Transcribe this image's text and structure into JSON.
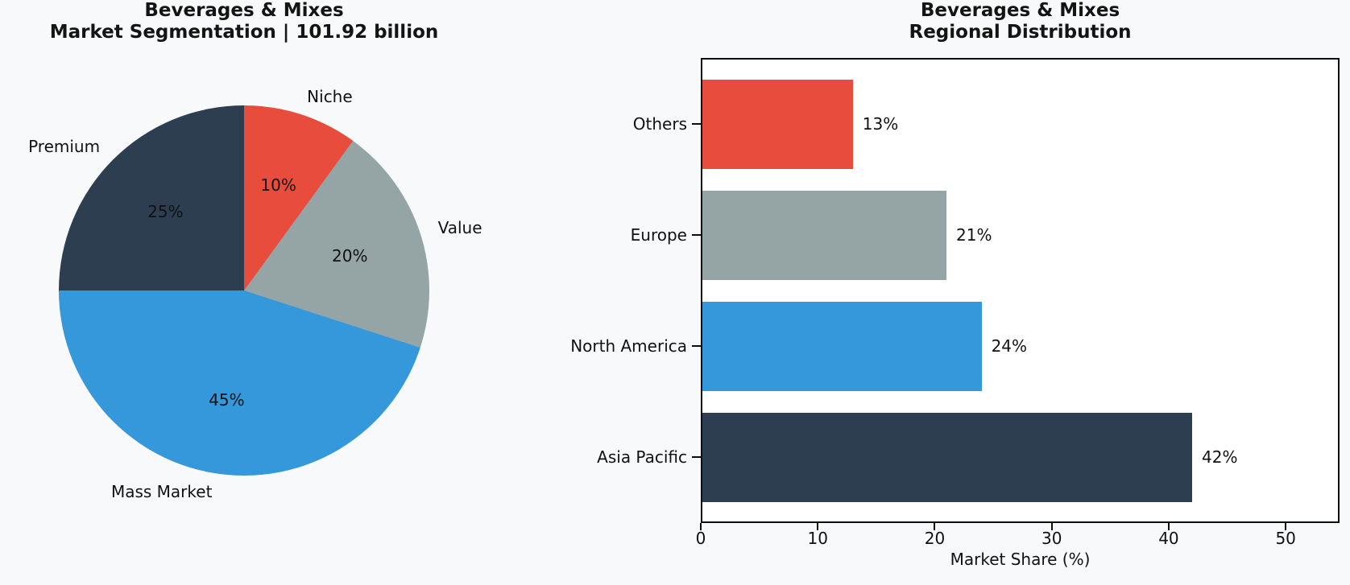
{
  "figure": {
    "background": "#f8f9fa",
    "plot_background": "#ffffff",
    "palette": {
      "red": "#e74c3c",
      "gray": "#95a5a6",
      "blue": "#3498db",
      "navy": "#2c3e50"
    }
  },
  "chart_data": [
    {
      "type": "pie",
      "title_lines": [
        "Beverages & Mixes",
        "Market Segmentation | 101.92 billion"
      ],
      "total_label": "101.92 billion",
      "labels": [
        "Niche",
        "Value",
        "Mass Market",
        "Premium"
      ],
      "values": [
        10,
        20,
        45,
        25
      ],
      "value_labels": [
        "10%",
        "20%",
        "45%",
        "25%"
      ],
      "colors": [
        "#e74c3c",
        "#95a5a6",
        "#3498db",
        "#2c3e50"
      ],
      "start_angle": "12-oclock",
      "direction": "clockwise",
      "legend_position": "none"
    },
    {
      "type": "bar",
      "orientation": "horizontal",
      "title_lines": [
        "Beverages & Mixes",
        "Regional Distribution"
      ],
      "categories": [
        "Others",
        "Europe",
        "North America",
        "Asia Pacific"
      ],
      "values": [
        13,
        21,
        24,
        42
      ],
      "value_labels": [
        "13%",
        "21%",
        "24%",
        "42%"
      ],
      "colors": [
        "#e74c3c",
        "#95a5a6",
        "#3498db",
        "#2c3e50"
      ],
      "xlabel": "Market Share (%)",
      "xlim": [
        0,
        54.6
      ],
      "xticks": [
        "0",
        "10",
        "20",
        "30",
        "40",
        "50"
      ],
      "grid": false,
      "legend_position": "none"
    }
  ]
}
